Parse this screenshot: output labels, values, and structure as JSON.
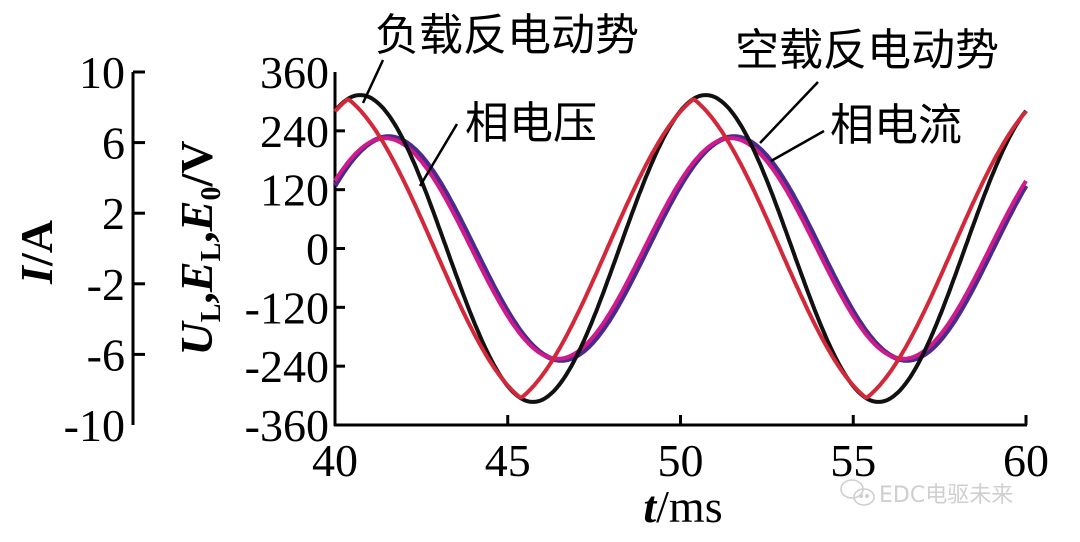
{
  "chart_data": {
    "type": "line",
    "title": "",
    "xlabel": "t/ms",
    "xlabel_italic": "t",
    "xlabel_unit": "/ms",
    "x_ticks": [
      40,
      45,
      50,
      55,
      60
    ],
    "xlim": [
      40,
      60
    ],
    "y_axes": [
      {
        "id": "current",
        "label": "I/A",
        "ticks": [
          "10",
          "6",
          "2",
          "-2",
          "-6",
          "-10"
        ],
        "tick_values": [
          10,
          6,
          2,
          -2,
          -6,
          -10
        ],
        "ylim": [
          -10,
          10
        ]
      },
      {
        "id": "voltage",
        "label": "U_L,E_L,E_0/V",
        "ticks": [
          "360",
          "240",
          "120",
          "0",
          "-120",
          "-240",
          "-360"
        ],
        "tick_values": [
          360,
          240,
          120,
          0,
          -120,
          -240,
          -360
        ],
        "ylim": [
          -360,
          360
        ]
      }
    ],
    "grid": false,
    "legend": "leader-line annotations",
    "series": [
      {
        "name": "负载反电动势",
        "axis": "voltage",
        "color": "#111111",
        "amplitude": 313,
        "period_ms": 10.0,
        "peak_t": 40.73,
        "shape": "sine",
        "points": [
          [
            40,
            291
          ],
          [
            40.73,
            313
          ],
          [
            43.23,
            0
          ],
          [
            45.73,
            -313
          ],
          [
            48.23,
            0
          ],
          [
            50.73,
            313
          ],
          [
            53.23,
            0
          ],
          [
            55.73,
            -313
          ],
          [
            58.23,
            0
          ],
          [
            60,
            240
          ]
        ]
      },
      {
        "name": "相电压",
        "axis": "voltage",
        "color": "#d2283a",
        "amplitude": 305,
        "period_ms": 10.0,
        "peak_t": 40.38,
        "shape": "triangular-sine",
        "points": [
          [
            40,
            280
          ],
          [
            40.38,
            305
          ],
          [
            42.9,
            0
          ],
          [
            45.38,
            -305
          ],
          [
            47.9,
            0
          ],
          [
            50.38,
            305
          ],
          [
            52.9,
            0
          ],
          [
            55.38,
            -305
          ],
          [
            57.9,
            0
          ],
          [
            60,
            285
          ]
        ]
      },
      {
        "name": "空载反电动势",
        "axis": "voltage",
        "color": "#4a2a8c",
        "amplitude": 228,
        "period_ms": 10.0,
        "peak_t": 41.55,
        "shape": "sine",
        "points": [
          [
            40,
            152
          ],
          [
            41.55,
            228
          ],
          [
            44.05,
            0
          ],
          [
            46.55,
            -228
          ],
          [
            49.05,
            0
          ],
          [
            51.55,
            228
          ],
          [
            54.05,
            0
          ],
          [
            56.55,
            -228
          ],
          [
            59.05,
            0
          ],
          [
            60,
            152
          ]
        ]
      },
      {
        "name": "相电流",
        "axis": "current",
        "color": "#d01a8c",
        "amplitude_A": 6.3,
        "amplitude_on_voltage_scale": 225,
        "period_ms": 10.0,
        "peak_t": 41.45,
        "shape": "sine",
        "points": [
          [
            40,
            3.6
          ],
          [
            41.45,
            6.3
          ],
          [
            43.95,
            0
          ],
          [
            46.45,
            -6.3
          ],
          [
            48.95,
            0
          ],
          [
            51.45,
            6.3
          ],
          [
            53.95,
            0
          ],
          [
            56.45,
            -6.3
          ],
          [
            58.95,
            0
          ],
          [
            60,
            3.5
          ]
        ]
      }
    ],
    "annotations": [
      "负载反电动势",
      "相电压",
      "空载反电动势",
      "相电流"
    ]
  },
  "labels": {
    "load_emf": "负载反电动势",
    "phase_voltage": "相电压",
    "noload_emf": "空载反电动势",
    "phase_current": "相电流",
    "current_axis_title_i": "I",
    "current_axis_title_unit": "/A",
    "voltage_axis_title": "U_L,E_L,E_0/V",
    "x_axis_title_t": "t",
    "x_axis_title_unit": "/ms",
    "watermark": "EDC电驱未来"
  }
}
